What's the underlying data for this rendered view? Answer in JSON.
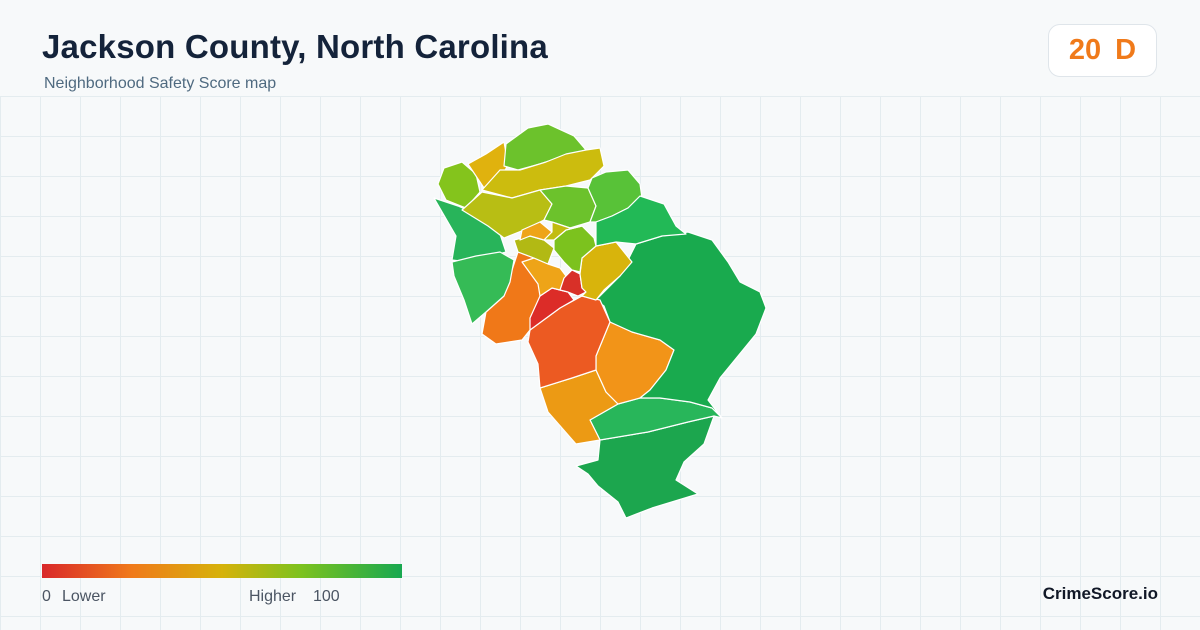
{
  "header": {
    "title": "Jackson County, North Carolina",
    "subtitle": "Neighborhood Safety Score map"
  },
  "score": {
    "value": "20",
    "grade": "D",
    "color": "#f07a1a"
  },
  "legend": {
    "min_label": "0",
    "low_label": "Lower",
    "high_label": "Higher",
    "max_label": "100",
    "colors": [
      "#d9282a",
      "#f07a1a",
      "#d6b20a",
      "#7cc21e",
      "#18a850"
    ]
  },
  "brand": {
    "name": "CrimeScore.io"
  },
  "map": {
    "region_colors": {
      "nw_lime": "#84c41c",
      "n_green": "#6cc22c",
      "nw_yellow": "#e0b20e",
      "n_olive": "#ccbc0e",
      "n_olive2": "#c2bc10",
      "c_olive": "#b8be14",
      "ne_green": "#58c238",
      "ne_green2": "#6cc22c",
      "ne_teal": "#22b956",
      "w_green": "#28b45a",
      "w_green2": "#35bb56",
      "c_orange_s": "#eea418",
      "c_lime": "#7cc21e",
      "c_olive3": "#b2b914",
      "c_yellow": "#d8b40c",
      "w_orange": "#f07818",
      "c_orange": "#ec5a22",
      "c_red": "#dc2c28",
      "c_red2": "#d83028",
      "e_big": "#19aa4e",
      "se_orange": "#f29418",
      "s_orange": "#ec9a14",
      "s_green": "#28b65a",
      "s_bottom": "#1ca64e"
    }
  }
}
